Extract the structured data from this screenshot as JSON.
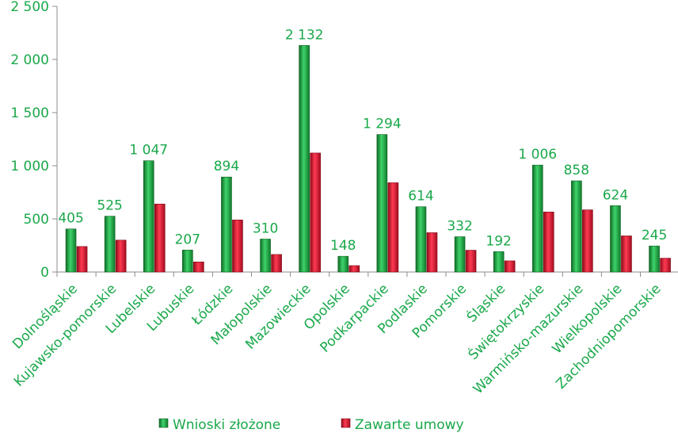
{
  "chart_data": {
    "type": "bar",
    "categories": [
      "Dolnośląskie",
      "Kujawsko-pomorskie",
      "Lubelskie",
      "Lubuskie",
      "Łódzkie",
      "Małopolskie",
      "Mazowieckie",
      "Opolskie",
      "Podkarpackie",
      "Podlaskie",
      "Pomorskie",
      "Śląskie",
      "Świętokrzyskie",
      "Warmińsko-mazurskie",
      "Wielkopolskie",
      "Zachodniopomorskie"
    ],
    "series": [
      {
        "name": "Wnioski złożone",
        "color": "#1e9a3c",
        "values": [
          405,
          525,
          1047,
          207,
          894,
          310,
          2132,
          148,
          1294,
          614,
          332,
          192,
          1006,
          858,
          624,
          245
        ],
        "labels": [
          "405",
          "525",
          "1 047",
          "207",
          "894",
          "310",
          "2 132",
          "148",
          "1 294",
          "614",
          "332",
          "192",
          "1 006",
          "858",
          "624",
          "245"
        ]
      },
      {
        "name": "Zawarte umowy",
        "color": "#d8122b",
        "values": [
          240,
          300,
          640,
          95,
          490,
          165,
          1120,
          60,
          840,
          370,
          205,
          105,
          565,
          585,
          340,
          130
        ]
      }
    ],
    "ylim": [
      0,
      2500
    ],
    "yticks": [
      0,
      500,
      1000,
      1500,
      2000,
      2500
    ],
    "ytick_labels": [
      "0",
      "500",
      "1 000",
      "1 500",
      "2 000",
      "2 500"
    ],
    "legend": "bottom",
    "grid": false
  }
}
